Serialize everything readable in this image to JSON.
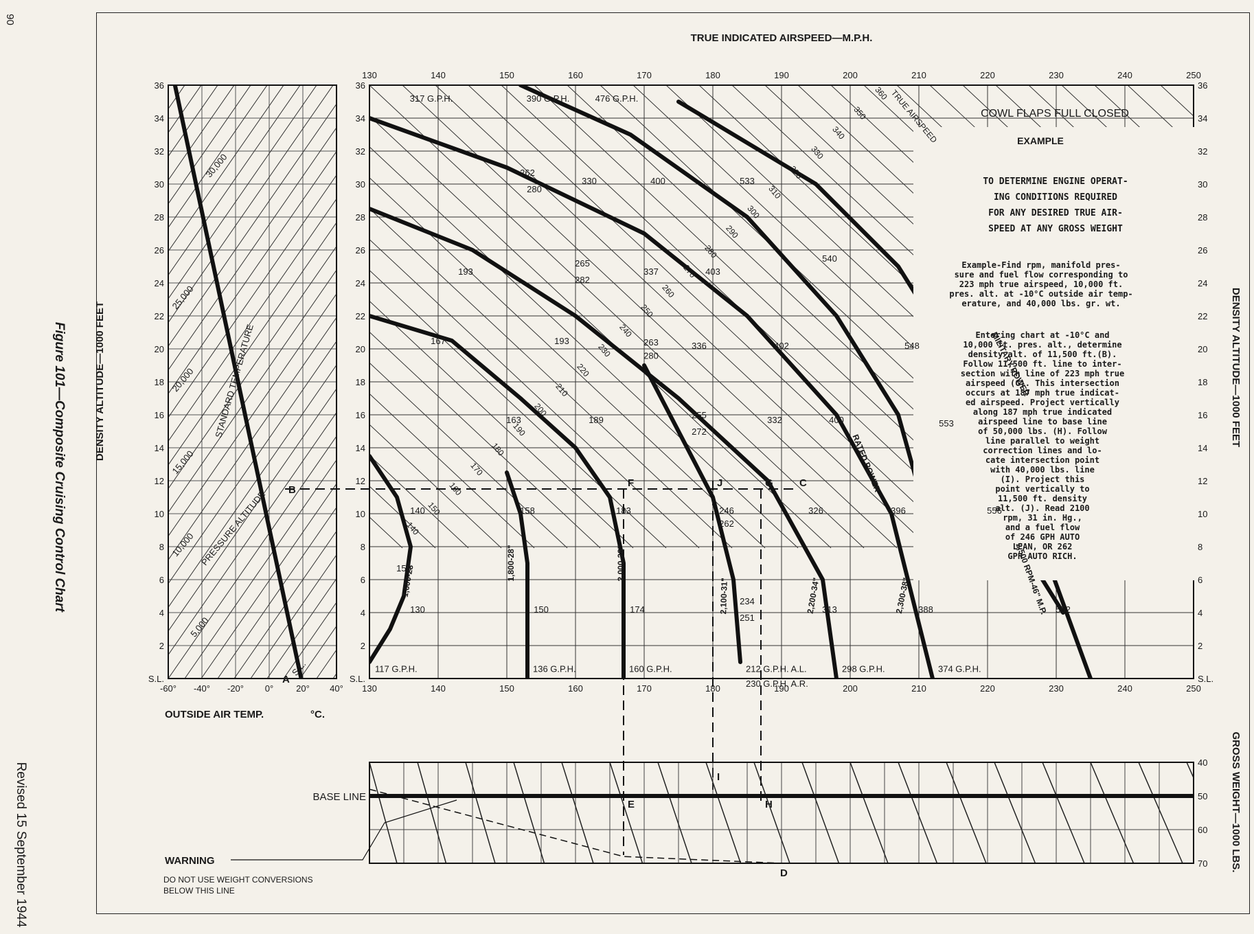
{
  "page_number": "90",
  "figure_caption": "Figure 101—Composite Cruising Control Chart",
  "revision": "Revised 15 September 1944",
  "chart_data": {
    "type": "line",
    "title": "TRUE INDICATED AIRSPEED—M.P.H.",
    "xlabel_top": "TRUE INDICATED AIRSPEED—M.P.H.",
    "ylabel_left": "DENSITY ALTITUDE—1000 FEET",
    "ylabel_right": "DENSITY ALTITUDE—1000 FEET",
    "ylabel_weight": "GROSS WEIGHT—1000 LBS.",
    "temp_xlabel": "OUTSIDE AIR TEMP.",
    "temp_unit": "°C.",
    "xlim": [
      130,
      250
    ],
    "ylim": [
      0,
      36
    ],
    "x_ticks": [
      "130",
      "140",
      "150",
      "160",
      "170",
      "180",
      "190",
      "200",
      "210",
      "220",
      "230",
      "240",
      "250"
    ],
    "y_ticks": [
      "S.L.",
      "2",
      "4",
      "6",
      "8",
      "10",
      "12",
      "14",
      "16",
      "18",
      "20",
      "22",
      "24",
      "26",
      "28",
      "30",
      "32",
      "34",
      "36"
    ],
    "temp_ticks": [
      "-60°",
      "-40°",
      "-20°",
      "0°",
      "20°",
      "40°"
    ],
    "temp_lim": [
      -60,
      40
    ],
    "weight_ticks": [
      "40",
      "50",
      "60",
      "70"
    ],
    "base_line_label": "BASE LINE",
    "warning_title": "WARNING",
    "warning_text": [
      "DO NOT USE WEIGHT CONVERSIONS",
      "BELOW THIS LINE"
    ],
    "cowl_flaps": "COWL FLAPS FULL CLOSED",
    "example_title": "EXAMPLE",
    "example_heading": [
      "TO DETERMINE ENGINE OPERAT-",
      "ING CONDITIONS REQUIRED",
      "FOR ANY DESIRED TRUE AIR-",
      "SPEED AT ANY GROSS WEIGHT"
    ],
    "example_para1": [
      "Example-Find rpm, manifold pres-",
      "sure and fuel flow corresponding to",
      "223 mph true airspeed, 10,000 ft.",
      "pres. alt. at -10°C outside air temp-",
      "erature, and 40,000 lbs. gr. wt."
    ],
    "example_para2": [
      "Entering chart at -10°C and",
      "10,000 ft. pres. alt., determine",
      "density alt. of 11,500 ft.(B).",
      "Follow 11,500 ft. line to inter-",
      "section with line of 223 mph true",
      "airspeed (G). This intersection",
      "occurs at 187 mph true indicat-",
      "ed airspeed. Project vertically",
      "along 187 mph true indicated",
      "airspeed line to base line",
      "of 50,000 lbs. (H). Follow",
      "line parallel to weight",
      "correction lines and lo-",
      "cate intersection point",
      "with 40,000 lbs. line",
      "(I). Project this",
      "point vertically to",
      "11,500 ft. density",
      "alt. (J). Read 2100",
      "rpm, 31 in. Hg.,",
      "and a fuel flow",
      "of 246 GPH AUTO",
      "LEAN, OR 262",
      "GPH AUTO RICH."
    ],
    "pressure_altitude_label": "PRESSURE ALTITUDE",
    "standard_temp_label": "STANDARD TEMPERATURE",
    "pressure_altitudes": [
      {
        "label": "S.L.",
        "temp": 19,
        "alt": 0.5
      },
      {
        "label": "5,000",
        "temp": -40,
        "alt": 3
      },
      {
        "label": "10,000",
        "temp": -50,
        "alt": 8
      },
      {
        "label": "15,000",
        "temp": -50,
        "alt": 13
      },
      {
        "label": "20,000",
        "temp": -50,
        "alt": 18
      },
      {
        "label": "25,000",
        "temp": -50,
        "alt": 23
      },
      {
        "label": "30,000",
        "temp": -30,
        "alt": 31
      }
    ],
    "true_airspeed_label": "TRUE AIRSPEED",
    "true_airspeed_lines": [
      "140",
      "150",
      "160",
      "170",
      "180",
      "190",
      "200",
      "210",
      "220",
      "230",
      "240",
      "250",
      "260",
      "270",
      "280",
      "290",
      "300",
      "310",
      "320",
      "330",
      "340",
      "350",
      "360"
    ],
    "power_curves": [
      {
        "name": "1,600-28\"",
        "sl_fuel": "117 G.P.H.",
        "points": [
          [
            130,
            13.5
          ],
          [
            134,
            11
          ],
          [
            136,
            8
          ],
          [
            135,
            5
          ],
          [
            133,
            3
          ],
          [
            130,
            1
          ]
        ]
      },
      {
        "name": "1,800-28\"",
        "sl_fuel": "136 G.P.H.",
        "points": [
          [
            150,
            12.5
          ],
          [
            152,
            10
          ],
          [
            153,
            7
          ],
          [
            153,
            4
          ],
          [
            153,
            0
          ]
        ]
      },
      {
        "name": "2,000-28\"",
        "sl_fuel": "160 G.P.H.",
        "points": [
          [
            130,
            22
          ],
          [
            142,
            20.5
          ],
          [
            152,
            17
          ],
          [
            160,
            14
          ],
          [
            165,
            11
          ],
          [
            167,
            7
          ],
          [
            167,
            0
          ]
        ]
      },
      {
        "name": "2,100-31\"",
        "sl_fuel": "212 G.P.H. A.L.",
        "sl_fuel2": "230 G.P.H. A.R.",
        "points": [
          [
            170,
            19
          ],
          [
            175,
            15
          ],
          [
            180,
            11
          ],
          [
            183,
            6
          ],
          [
            184,
            1
          ]
        ]
      },
      {
        "name": "2,200-34\"",
        "sl_fuel": "298 G.P.H.",
        "points": [
          [
            130,
            28.5
          ],
          [
            145,
            26
          ],
          [
            160,
            22
          ],
          [
            175,
            17
          ],
          [
            188,
            12
          ],
          [
            196,
            6
          ],
          [
            198,
            0
          ]
        ]
      },
      {
        "name": "2,300-38\"",
        "sl_fuel": "374 G.P.H.",
        "points": [
          [
            130,
            34
          ],
          [
            150,
            31
          ],
          [
            170,
            27
          ],
          [
            185,
            22
          ],
          [
            198,
            16
          ],
          [
            206,
            10
          ],
          [
            212,
            0
          ]
        ]
      },
      {
        "name": "RATED POWER",
        "points": [
          [
            152,
            36
          ],
          [
            168,
            33
          ],
          [
            185,
            28
          ],
          [
            198,
            22
          ],
          [
            207,
            16
          ],
          [
            211,
            10
          ]
        ]
      },
      {
        "name": "MILITARY POWER",
        "points": [
          [
            175,
            35
          ],
          [
            195,
            30
          ],
          [
            207,
            25
          ],
          [
            216,
            19
          ],
          [
            222,
            13
          ],
          [
            228,
            8
          ],
          [
            235,
            0
          ]
        ]
      },
      {
        "name": "2,500 RPM-46\" M.P.",
        "points": [
          [
            215,
            14
          ],
          [
            222,
            10
          ],
          [
            228,
            6
          ],
          [
            231,
            4
          ]
        ]
      }
    ],
    "fuel_labels": [
      "317 G.P.H.",
      "390 G.P.H.",
      "476 G.P.H.",
      "262",
      "280",
      "330",
      "400",
      "533",
      "540",
      "193",
      "265",
      "282",
      "337",
      "403",
      "167",
      "193",
      "263",
      "280",
      "336",
      "402",
      "548",
      "163",
      "189",
      "255",
      "272",
      "332",
      "400",
      "553",
      "140",
      "158",
      "183",
      "246",
      "262",
      "326",
      "396",
      "556",
      "150",
      "130",
      "150",
      "174",
      "234",
      "251",
      "313",
      "388",
      "552"
    ],
    "points": [
      {
        "label": "A",
        "desc": "Outside air temp -10°C"
      },
      {
        "label": "B",
        "desc": "Density altitude 11,500 ft."
      },
      {
        "label": "C"
      },
      {
        "label": "D"
      },
      {
        "label": "E"
      },
      {
        "label": "F"
      },
      {
        "label": "G",
        "desc": "Intersection with 223 mph true airspeed"
      },
      {
        "label": "H",
        "desc": "Base line 50,000 lbs"
      },
      {
        "label": "I",
        "desc": "40,000 lbs line"
      },
      {
        "label": "J",
        "desc": "11,500 ft density altitude"
      }
    ],
    "grid": true
  }
}
